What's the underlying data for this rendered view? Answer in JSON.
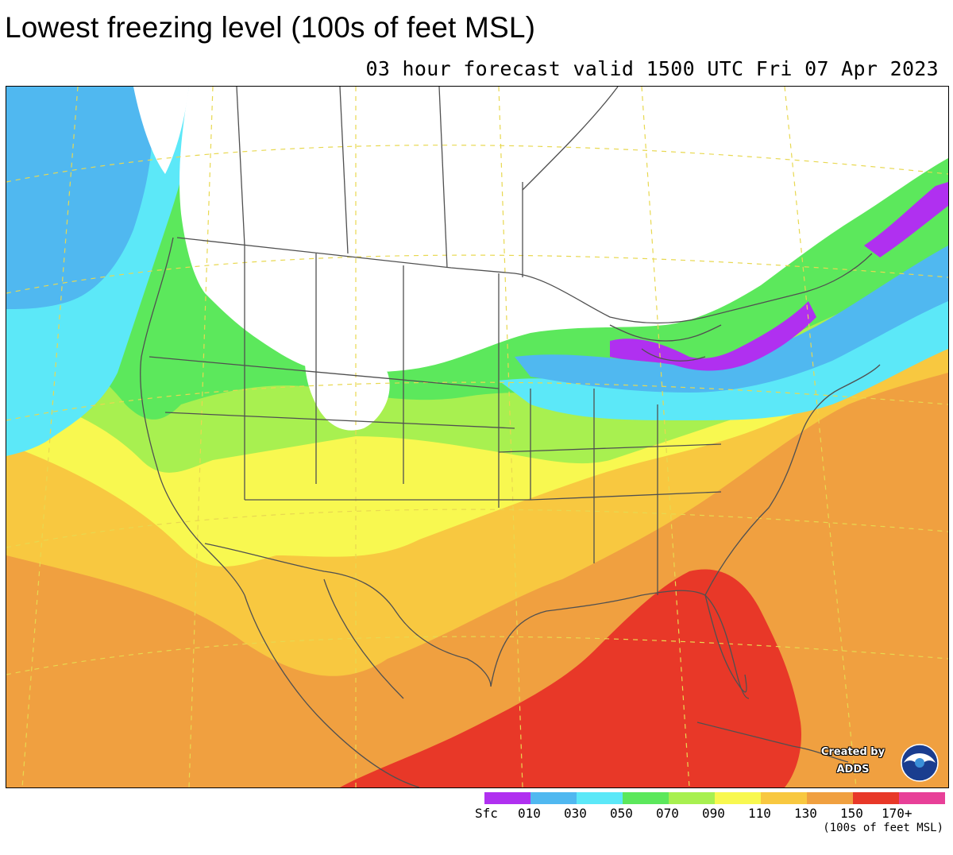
{
  "header": {
    "title": "Lowest freezing level (100s of feet MSL)",
    "subtitle": "03 hour forecast valid 1500 UTC Fri 07 Apr 2023"
  },
  "map": {
    "projection": "lambert-conformal",
    "region": "North America / Contiguous United States, Mexico, southern Canada",
    "ocean_and_land_color_field": "freezing level color shading",
    "map_lines": [
      "state-boundaries",
      "coastlines",
      "lat-lon-grid-dashed"
    ]
  },
  "legend": {
    "units": "(100s of feet MSL)",
    "bins": [
      {
        "label": "Sfc",
        "color": "#b030f0"
      },
      {
        "label": "010",
        "color": "#50b8f0"
      },
      {
        "label": "030",
        "color": "#5ce8f8"
      },
      {
        "label": "050",
        "color": "#5ce85c"
      },
      {
        "label": "070",
        "color": "#a8f050"
      },
      {
        "label": "090",
        "color": "#f8f850"
      },
      {
        "label": "110",
        "color": "#f8c840"
      },
      {
        "label": "130",
        "color": "#f0a040"
      },
      {
        "label": "150",
        "color": "#e83828"
      },
      {
        "label": "170+",
        "color": "#e84098"
      }
    ]
  },
  "credit": {
    "line1": "Created by",
    "line2": "ADDS",
    "logo": "noaa-logo"
  },
  "colors": {
    "no_data_above": "#ffffff",
    "boundary_lines": "#505050",
    "grid_lines": "#e8d850"
  }
}
